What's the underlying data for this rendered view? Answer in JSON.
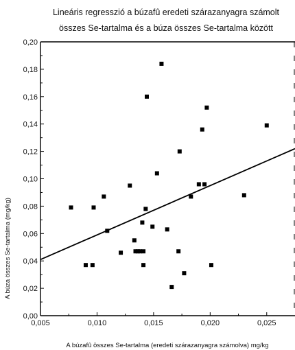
{
  "chart_data": {
    "type": "scatter",
    "title_lines": [
      "Lineáris regresszió a búzafû eredeti szárazanyagra számolt",
      "összes Se-tartalma és a búza összes Se-tartalma között"
    ],
    "xlabel": "A búzafû összes Se-tartalma (eredeti szárazanyagra számolva) mg/kg",
    "ylabel": "A búza összes Se-tartalma (mg/kg)",
    "xlim": [
      0.005,
      0.0275
    ],
    "ylim": [
      0.0,
      0.2
    ],
    "xticks": [
      0.005,
      0.01,
      0.015,
      0.02,
      0.025
    ],
    "xtick_labels": [
      "0,005",
      "0,010",
      "0,015",
      "0,020",
      "0,025"
    ],
    "yticks": [
      0.0,
      0.02,
      0.04,
      0.06,
      0.08,
      0.1,
      0.12,
      0.14,
      0.16,
      0.18,
      0.2
    ],
    "ytick_labels": [
      "0,00",
      "0,02",
      "0,04",
      "0,06",
      "0,08",
      "0,10",
      "0,12",
      "0,14",
      "0,16",
      "0,18",
      "0,20"
    ],
    "points": [
      {
        "x": 0.0077,
        "y": 0.079
      },
      {
        "x": 0.009,
        "y": 0.037
      },
      {
        "x": 0.0096,
        "y": 0.037
      },
      {
        "x": 0.0097,
        "y": 0.079
      },
      {
        "x": 0.0106,
        "y": 0.087
      },
      {
        "x": 0.0109,
        "y": 0.062
      },
      {
        "x": 0.0121,
        "y": 0.046
      },
      {
        "x": 0.0129,
        "y": 0.095
      },
      {
        "x": 0.0133,
        "y": 0.055
      },
      {
        "x": 0.0134,
        "y": 0.047
      },
      {
        "x": 0.0136,
        "y": 0.047
      },
      {
        "x": 0.0138,
        "y": 0.047
      },
      {
        "x": 0.014,
        "y": 0.068
      },
      {
        "x": 0.0141,
        "y": 0.047
      },
      {
        "x": 0.0141,
        "y": 0.037
      },
      {
        "x": 0.0143,
        "y": 0.078
      },
      {
        "x": 0.0144,
        "y": 0.16
      },
      {
        "x": 0.0149,
        "y": 0.065
      },
      {
        "x": 0.0153,
        "y": 0.104
      },
      {
        "x": 0.0157,
        "y": 0.184
      },
      {
        "x": 0.0162,
        "y": 0.063
      },
      {
        "x": 0.0166,
        "y": 0.021
      },
      {
        "x": 0.0172,
        "y": 0.047
      },
      {
        "x": 0.0173,
        "y": 0.12
      },
      {
        "x": 0.0177,
        "y": 0.031
      },
      {
        "x": 0.0183,
        "y": 0.087
      },
      {
        "x": 0.019,
        "y": 0.096
      },
      {
        "x": 0.0193,
        "y": 0.136
      },
      {
        "x": 0.0195,
        "y": 0.096
      },
      {
        "x": 0.0197,
        "y": 0.152
      },
      {
        "x": 0.0201,
        "y": 0.037
      },
      {
        "x": 0.023,
        "y": 0.088
      },
      {
        "x": 0.025,
        "y": 0.139
      }
    ],
    "regression_line": {
      "x": [
        0.005,
        0.0275
      ],
      "y": [
        0.041,
        0.122
      ]
    },
    "grid": false,
    "legend": false
  }
}
